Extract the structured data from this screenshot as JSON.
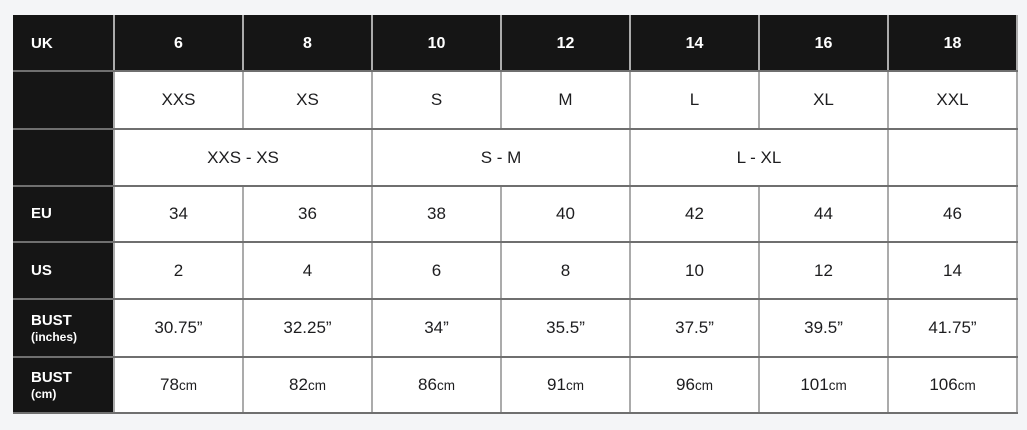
{
  "page": {
    "background_color": "#f4f5f7"
  },
  "colors": {
    "header_bg": "#151515",
    "header_text": "#ffffff",
    "cell_bg": "#ffffff",
    "cell_text": "#1d1d1f",
    "grid_vertical": "#ababab",
    "grid_horizontal": "#6f6f6f"
  },
  "chart_data": {
    "type": "table",
    "rows": [
      {
        "label": "UK",
        "cells": [
          "6",
          "8",
          "10",
          "12",
          "14",
          "16",
          "18"
        ]
      },
      {
        "label": "",
        "cells": [
          "XXS",
          "XS",
          "S",
          "M",
          "L",
          "XL",
          "XXL"
        ]
      },
      {
        "label": "",
        "groups": [
          "XXS - XS",
          "S - M",
          "L - XL",
          ""
        ]
      },
      {
        "label": "EU",
        "cells": [
          "34",
          "36",
          "38",
          "40",
          "42",
          "44",
          "46"
        ]
      },
      {
        "label": "US",
        "cells": [
          "2",
          "4",
          "6",
          "8",
          "10",
          "12",
          "14"
        ]
      },
      {
        "label": "BUST",
        "sublabel": "(inches)",
        "cells": [
          "30.75”",
          "32.25”",
          "34”",
          "35.5”",
          "37.5”",
          "39.5”",
          "41.75”"
        ]
      },
      {
        "label": "BUST",
        "sublabel": "(cm)",
        "values": [
          "78",
          "82",
          "86",
          "91",
          "96",
          "101",
          "106"
        ],
        "unit": "cm"
      }
    ]
  }
}
